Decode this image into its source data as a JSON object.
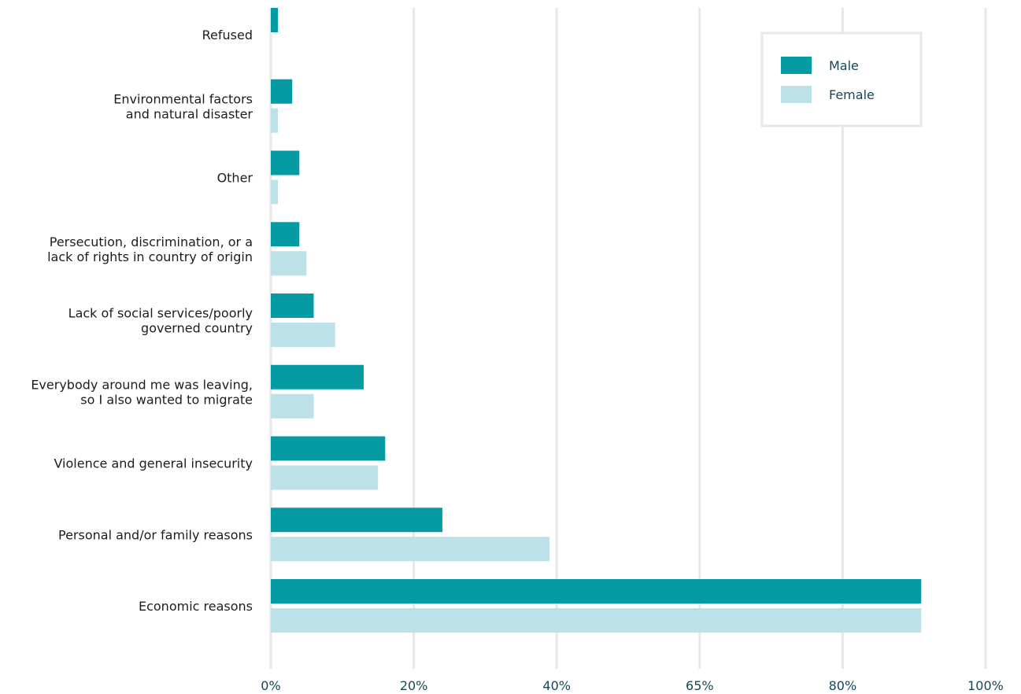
{
  "chart_data": {
    "type": "bar",
    "orientation": "horizontal",
    "categories": [
      [
        "Refused"
      ],
      [
        "Environmental factors",
        "and natural disaster"
      ],
      [
        "Other"
      ],
      [
        "Persecution, discrimination, or a",
        "lack of rights in country of origin"
      ],
      [
        "Lack of social services/poorly",
        "governed country"
      ],
      [
        "Everybody around me was leaving,",
        "so I also wanted to migrate"
      ],
      [
        "Violence and general insecurity"
      ],
      [
        "Personal and/or family reasons"
      ],
      [
        "Economic reasons"
      ]
    ],
    "series": [
      {
        "name": "Male",
        "color": "#049ba3",
        "values": [
          1,
          3,
          4,
          4,
          6,
          13,
          16,
          24,
          91
        ]
      },
      {
        "name": "Female",
        "color": "#bce2e8",
        "values": [
          0,
          1,
          1,
          5,
          9,
          6,
          15,
          39,
          91
        ]
      }
    ],
    "x_ticks": [
      "0%",
      "20%",
      "40%",
      "65%",
      "80%",
      "100%"
    ],
    "xlim": [
      0,
      100
    ],
    "grid": true,
    "legend_position": "top-right",
    "title": "",
    "xlabel": "",
    "ylabel": ""
  }
}
